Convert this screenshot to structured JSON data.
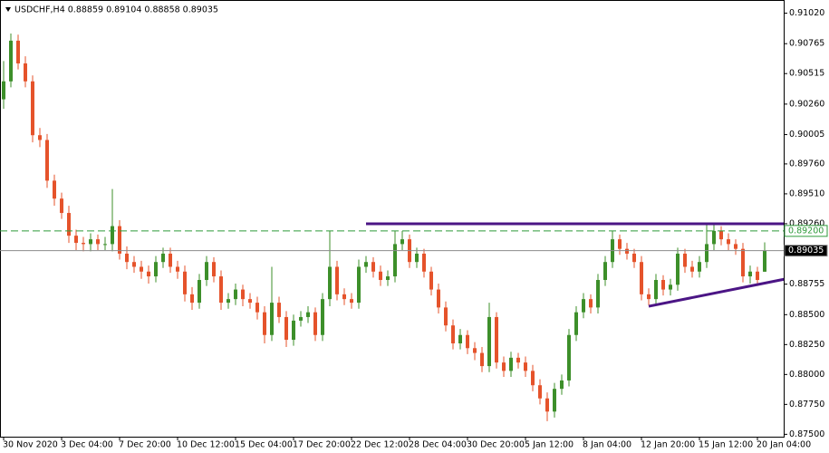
{
  "chart_data": {
    "type": "candlestick",
    "title": "USDCHF,H4  0.88859 0.89104 0.88858 0.89035",
    "up_color": "#3d8f2a",
    "down_color": "#e5532b",
    "ylim": [
      0.8748,
      0.9113
    ],
    "yticks": [
      {
        "value": 0.9102,
        "label": "0.91020"
      },
      {
        "value": 0.90765,
        "label": "0.90765"
      },
      {
        "value": 0.90515,
        "label": "0.90515"
      },
      {
        "value": 0.9026,
        "label": "0.90260"
      },
      {
        "value": 0.90005,
        "label": "0.90005"
      },
      {
        "value": 0.8976,
        "label": "0.89760"
      },
      {
        "value": 0.8951,
        "label": "0.89510"
      },
      {
        "value": 0.8926,
        "label": "0.89260"
      },
      {
        "value": 0.88755,
        "label": "0.88755"
      },
      {
        "value": 0.885,
        "label": "0.88500"
      },
      {
        "value": 0.8825,
        "label": "0.88250"
      },
      {
        "value": 0.88,
        "label": "0.88000"
      },
      {
        "value": 0.8775,
        "label": "0.87750"
      },
      {
        "value": 0.875,
        "label": "0.87500"
      }
    ],
    "categories": [
      "30 Nov 2020",
      null,
      null,
      null,
      null,
      null,
      null,
      null,
      "3 Dec 04:00",
      null,
      null,
      null,
      null,
      null,
      null,
      null,
      "7 Dec 20:00",
      null,
      null,
      null,
      null,
      null,
      null,
      null,
      "10 Dec 12:00",
      null,
      null,
      null,
      null,
      null,
      null,
      null,
      "15 Dec 04:00",
      null,
      null,
      null,
      null,
      null,
      null,
      null,
      "17 Dec 20:00",
      null,
      null,
      null,
      null,
      null,
      null,
      null,
      "22 Dec 12:00",
      null,
      null,
      null,
      null,
      null,
      null,
      null,
      "28 Dec 04:00",
      null,
      null,
      null,
      null,
      null,
      null,
      null,
      "30 Dec 20:00",
      null,
      null,
      null,
      null,
      null,
      null,
      null,
      "5 Jan 12:00",
      null,
      null,
      null,
      null,
      null,
      null,
      null,
      "8 Jan 04:00",
      null,
      null,
      null,
      null,
      null,
      null,
      null,
      "12 Jan 20:00",
      null,
      null,
      null,
      null,
      null,
      null,
      null,
      "15 Jan 12:00",
      null,
      null,
      null,
      null,
      null,
      null,
      null,
      "20 Jan 04:00",
      null
    ],
    "open": [
      0.903,
      0.9045,
      0.9079,
      0.906,
      0.9045,
      0.9,
      0.8996,
      0.8962,
      0.8947,
      0.8935,
      0.8916,
      0.891,
      0.8909,
      0.8913,
      0.8909,
      0.8909,
      0.8924,
      0.8901,
      0.8894,
      0.889,
      0.8886,
      0.8882,
      0.8894,
      0.8901,
      0.889,
      0.8886,
      0.8867,
      0.886,
      0.8879,
      0.8894,
      0.8882,
      0.886,
      0.8863,
      0.8871,
      0.8863,
      0.886,
      0.8852,
      0.8833,
      0.886,
      0.8848,
      0.8829,
      0.8845,
      0.8848,
      0.8852,
      0.8833,
      0.8863,
      0.889,
      0.8867,
      0.8863,
      0.886,
      0.889,
      0.8894,
      0.8886,
      0.8879,
      0.8882,
      0.8909,
      0.8913,
      0.8894,
      0.8901,
      0.8886,
      0.8871,
      0.8856,
      0.8841,
      0.8826,
      0.8833,
      0.8822,
      0.8818,
      0.8807,
      0.8848,
      0.881,
      0.8803,
      0.8814,
      0.881,
      0.8803,
      0.8791,
      0.878,
      0.8769,
      0.8788,
      0.8795,
      0.8833,
      0.8852,
      0.8863,
      0.8856,
      0.8879,
      0.8894,
      0.8913,
      0.8905,
      0.8901,
      0.8894,
      0.8867,
      0.8863,
      0.8879,
      0.8871,
      0.8875,
      0.8901,
      0.889,
      0.8886,
      0.8894,
      0.8909,
      0.892,
      0.8913,
      0.8909,
      0.8905,
      0.8882,
      0.8886,
      0.88859
    ],
    "high": [
      0.9062,
      0.9085,
      0.9084,
      0.9066,
      0.905,
      0.9006,
      0.9001,
      0.8967,
      0.8952,
      0.8941,
      0.8921,
      0.8915,
      0.8918,
      0.8917,
      0.8915,
      0.8955,
      0.8929,
      0.8907,
      0.8899,
      0.8895,
      0.8891,
      0.8899,
      0.8906,
      0.8906,
      0.8895,
      0.8891,
      0.8873,
      0.8884,
      0.8899,
      0.8898,
      0.8887,
      0.8868,
      0.8876,
      0.8875,
      0.8868,
      0.8865,
      0.8857,
      0.889,
      0.8865,
      0.8853,
      0.885,
      0.8853,
      0.8857,
      0.8856,
      0.8868,
      0.892,
      0.8895,
      0.8872,
      0.8868,
      0.8896,
      0.8899,
      0.8898,
      0.8891,
      0.8887,
      0.892,
      0.892,
      0.8917,
      0.8906,
      0.8905,
      0.889,
      0.8876,
      0.8861,
      0.8846,
      0.8838,
      0.8837,
      0.8827,
      0.8823,
      0.886,
      0.8852,
      0.8815,
      0.8819,
      0.8818,
      0.8815,
      0.8808,
      0.8796,
      0.8785,
      0.8793,
      0.88,
      0.8838,
      0.8857,
      0.8868,
      0.8867,
      0.8884,
      0.8899,
      0.892,
      0.8917,
      0.891,
      0.8905,
      0.8899,
      0.8872,
      0.8884,
      0.8883,
      0.888,
      0.8906,
      0.8905,
      0.8895,
      0.8899,
      0.8926,
      0.8925,
      0.8924,
      0.8918,
      0.8913,
      0.891,
      0.8891,
      0.889,
      0.89104
    ],
    "low": [
      0.9022,
      0.904,
      0.9055,
      0.904,
      0.8994,
      0.899,
      0.8956,
      0.8941,
      0.893,
      0.891,
      0.8904,
      0.8903,
      0.8903,
      0.8904,
      0.8904,
      0.8903,
      0.8896,
      0.8888,
      0.8885,
      0.888,
      0.8876,
      0.8877,
      0.8889,
      0.8885,
      0.888,
      0.8861,
      0.8854,
      0.8855,
      0.8874,
      0.8877,
      0.8854,
      0.8855,
      0.8858,
      0.8857,
      0.8855,
      0.8846,
      0.8826,
      0.8828,
      0.8843,
      0.8823,
      0.8824,
      0.884,
      0.8843,
      0.8828,
      0.8828,
      0.8857,
      0.8862,
      0.8858,
      0.8855,
      0.8855,
      0.8885,
      0.8881,
      0.8874,
      0.8874,
      0.8877,
      0.8904,
      0.8889,
      0.8889,
      0.8881,
      0.8866,
      0.8851,
      0.8836,
      0.8821,
      0.8821,
      0.8817,
      0.8812,
      0.8802,
      0.8802,
      0.8805,
      0.8798,
      0.8798,
      0.8805,
      0.8798,
      0.8786,
      0.8775,
      0.8761,
      0.8764,
      0.8783,
      0.879,
      0.8828,
      0.8847,
      0.8851,
      0.8851,
      0.8874,
      0.8889,
      0.89,
      0.8896,
      0.8889,
      0.8862,
      0.8858,
      0.8858,
      0.8866,
      0.8866,
      0.887,
      0.8885,
      0.8881,
      0.8881,
      0.8889,
      0.8904,
      0.8908,
      0.8904,
      0.89,
      0.8877,
      0.8876,
      0.8874,
      0.88858
    ],
    "close": [
      0.9045,
      0.9079,
      0.906,
      0.9045,
      0.9,
      0.8996,
      0.8962,
      0.8947,
      0.8935,
      0.8916,
      0.891,
      0.8909,
      0.8913,
      0.8909,
      0.8909,
      0.8924,
      0.8901,
      0.8894,
      0.889,
      0.8886,
      0.8882,
      0.8894,
      0.8901,
      0.889,
      0.8886,
      0.8867,
      0.886,
      0.8879,
      0.8894,
      0.8882,
      0.886,
      0.8863,
      0.8871,
      0.8863,
      0.886,
      0.8852,
      0.8833,
      0.886,
      0.8848,
      0.8829,
      0.8845,
      0.8848,
      0.8852,
      0.8833,
      0.8863,
      0.889,
      0.8867,
      0.8863,
      0.886,
      0.889,
      0.8894,
      0.8886,
      0.8879,
      0.8882,
      0.8909,
      0.8913,
      0.8894,
      0.8901,
      0.8886,
      0.8871,
      0.8856,
      0.8841,
      0.8826,
      0.8833,
      0.8822,
      0.8818,
      0.8807,
      0.8848,
      0.881,
      0.8803,
      0.8814,
      0.881,
      0.8803,
      0.8791,
      0.878,
      0.8769,
      0.8788,
      0.8795,
      0.8833,
      0.8852,
      0.8863,
      0.8856,
      0.8879,
      0.8894,
      0.8913,
      0.8905,
      0.8901,
      0.8894,
      0.8867,
      0.8863,
      0.8879,
      0.8871,
      0.8875,
      0.8901,
      0.889,
      0.8886,
      0.8894,
      0.8909,
      0.892,
      0.8913,
      0.8909,
      0.8905,
      0.8882,
      0.8886,
      0.8879,
      0.89035
    ],
    "levels": [
      {
        "value": 0.892,
        "label": "0.89200",
        "color": "#2e9a3a",
        "dashed": true
      },
      {
        "value": 0.89035,
        "label": "0.89035",
        "color": "#8c8c8c",
        "dashed": false
      }
    ],
    "trendlines": [
      {
        "color": "#4b1585",
        "x": [
          50,
          108
        ],
        "y": [
          0.8926,
          0.8926
        ]
      },
      {
        "color": "#4b1585",
        "x": [
          89,
          108
        ],
        "y": [
          0.8857,
          0.888
        ]
      }
    ]
  }
}
